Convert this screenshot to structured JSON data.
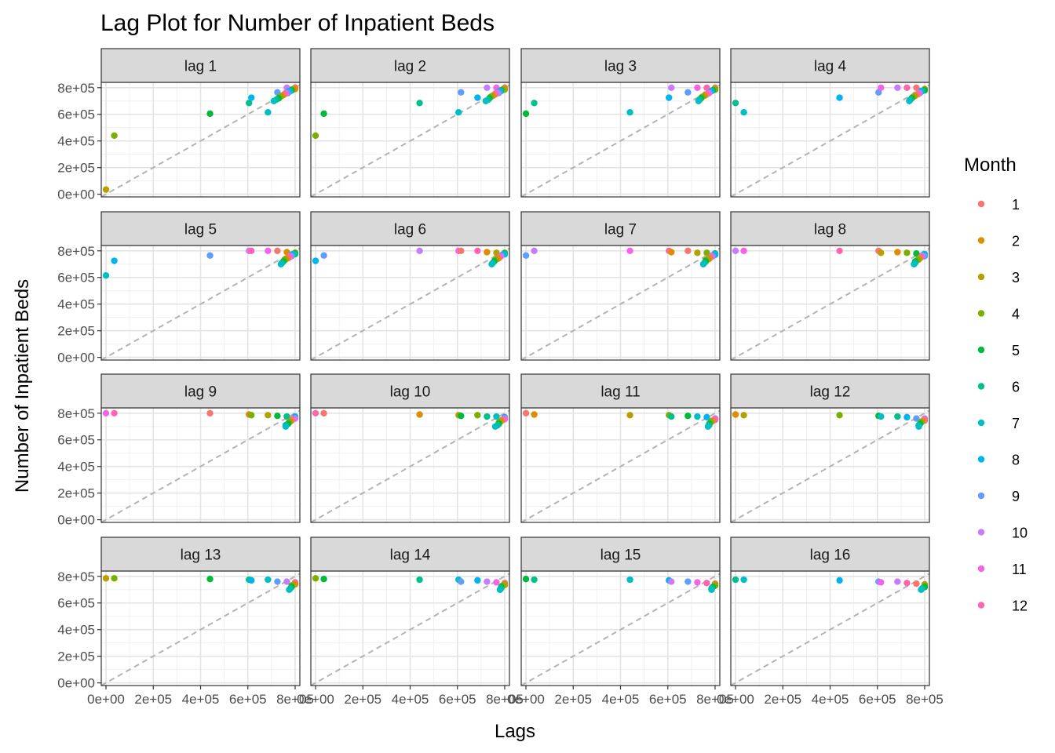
{
  "chart_data": {
    "type": "scatter",
    "title": "Lag Plot for Number of Inpatient Beds",
    "xlabel": "Lags",
    "ylabel": "Number of Inpatient Beds",
    "xlim": [
      -20000,
      820000
    ],
    "ylim": [
      -20000,
      840000
    ],
    "x_ticks": [
      0,
      200000,
      400000,
      600000,
      800000
    ],
    "x_tick_labels": [
      "0e+00",
      "2e+05",
      "4e+05",
      "6e+05",
      "8e+05"
    ],
    "y_ticks": [
      0,
      200000,
      400000,
      600000,
      800000
    ],
    "y_tick_labels": [
      "0e+00",
      "2e+05",
      "4e+05",
      "6e+05",
      "8e+05"
    ],
    "grid": true,
    "reference_line": "y = x (dashed grey)",
    "legend": {
      "title": "Month",
      "placement": "right",
      "entries": [
        {
          "label": "1",
          "color": "#F8766D"
        },
        {
          "label": "2",
          "color": "#DE8C00"
        },
        {
          "label": "3",
          "color": "#B79F00"
        },
        {
          "label": "4",
          "color": "#7CAE00"
        },
        {
          "label": "5",
          "color": "#00BA38"
        },
        {
          "label": "6",
          "color": "#00C08B"
        },
        {
          "label": "7",
          "color": "#00BFC4"
        },
        {
          "label": "8",
          "color": "#00B4F0"
        },
        {
          "label": "9",
          "color": "#619CFF"
        },
        {
          "label": "10",
          "color": "#C77CFF"
        },
        {
          "label": "11",
          "color": "#F564E3"
        },
        {
          "label": "12",
          "color": "#FF64B0"
        }
      ]
    },
    "series_values": {
      "months": [
        2,
        3,
        4,
        5,
        6,
        7,
        8,
        9,
        10,
        11,
        12,
        1,
        2,
        3,
        4,
        5,
        6,
        7,
        8,
        9,
        10,
        11,
        12,
        1,
        2,
        3,
        4,
        5,
        6,
        7
      ],
      "values": [
        0,
        35000,
        440000,
        605000,
        685000,
        615000,
        725000,
        765000,
        800000,
        800000,
        800000,
        800000,
        790000,
        785000,
        785000,
        780000,
        775000,
        775000,
        770000,
        760000,
        760000,
        755000,
        750000,
        745000,
        740000,
        735000,
        730000,
        720000,
        710000,
        700000
      ]
    },
    "panels": [
      "lag 1",
      "lag 2",
      "lag 3",
      "lag 4",
      "lag 5",
      "lag 6",
      "lag 7",
      "lag 8",
      "lag 9",
      "lag 10",
      "lag 11",
      "lag 12",
      "lag 13",
      "lag 14",
      "lag 15",
      "lag 16"
    ]
  }
}
